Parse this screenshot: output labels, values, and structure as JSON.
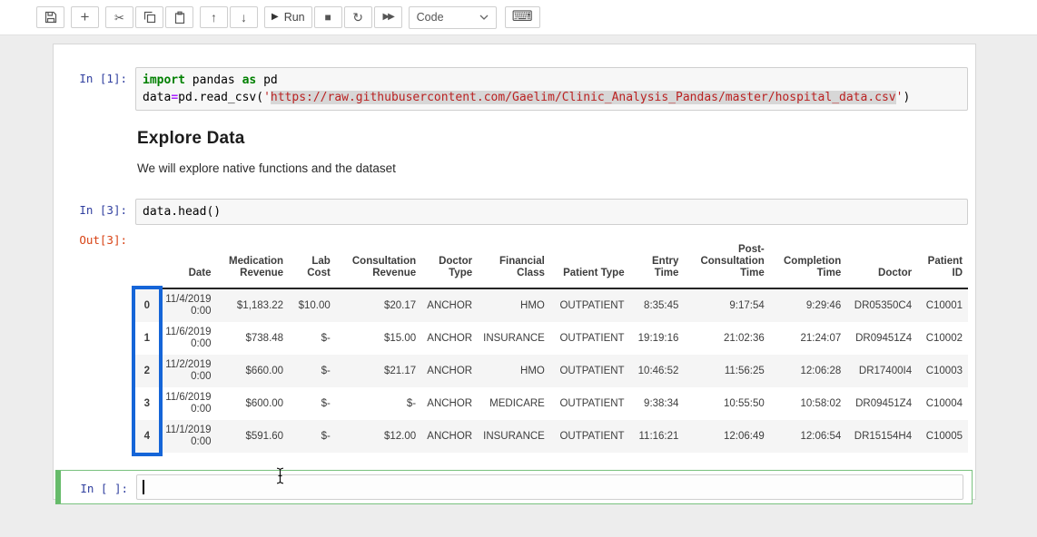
{
  "toolbar": {
    "mode": "Code",
    "run_label": "Run",
    "glyphs": {
      "plus": "+",
      "cut": "✂",
      "up": "↑",
      "down": "↓",
      "play": "▶",
      "stop": "■",
      "refresh": "↻",
      "ffwd": "▶▶",
      "keyboard": "⌨"
    }
  },
  "cell1": {
    "prompt": "In [1]:",
    "line1": [
      {
        "c": "kw",
        "t": "import"
      },
      {
        "c": "plain",
        "t": " pandas "
      },
      {
        "c": "kw",
        "t": "as"
      },
      {
        "c": "plain",
        "t": " pd"
      }
    ],
    "line2": [
      {
        "c": "plain",
        "t": "data"
      },
      {
        "c": "op",
        "t": "="
      },
      {
        "c": "plain",
        "t": "pd.read_csv("
      },
      {
        "c": "str",
        "t": "'"
      },
      {
        "c": "str sel",
        "t": "https://raw.githubusercontent.com/Gaelim/Clinic_Analysis_Pandas/master/hospital_data.csv"
      },
      {
        "c": "str",
        "t": "'"
      },
      {
        "c": "plain",
        "t": ")"
      }
    ]
  },
  "markdown": {
    "heading": "Explore Data",
    "paragraph": "We will explore native functions and the dataset"
  },
  "cell2": {
    "prompt": "In [3]:",
    "code": "data.head()",
    "out_prompt": "Out[3]:"
  },
  "table": {
    "columns": [
      "Date",
      "Medication Revenue",
      "Lab Cost",
      "Consultation Revenue",
      "Doctor Type",
      "Financial Class",
      "Patient Type",
      "Entry Time",
      "Post-Consultation Time",
      "Completion Time",
      "Doctor",
      "Patient ID"
    ],
    "rows": [
      {
        "index": "0",
        "cells": [
          "11/4/2019 0:00",
          "$1,183.22",
          "$10.00",
          "$20.17",
          "ANCHOR",
          "HMO",
          "OUTPATIENT",
          "8:35:45",
          "9:17:54",
          "9:29:46",
          "DR05350C4",
          "C10001"
        ]
      },
      {
        "index": "1",
        "cells": [
          "11/6/2019 0:00",
          "$738.48",
          "$-",
          "$15.00",
          "ANCHOR",
          "INSURANCE",
          "OUTPATIENT",
          "19:19:16",
          "21:02:36",
          "21:24:07",
          "DR09451Z4",
          "C10002"
        ]
      },
      {
        "index": "2",
        "cells": [
          "11/2/2019 0:00",
          "$660.00",
          "$-",
          "$21.17",
          "ANCHOR",
          "HMO",
          "OUTPATIENT",
          "10:46:52",
          "11:56:25",
          "12:06:28",
          "DR17400I4",
          "C10003"
        ]
      },
      {
        "index": "3",
        "cells": [
          "11/6/2019 0:00",
          "$600.00",
          "$-",
          "$-",
          "ANCHOR",
          "MEDICARE",
          "OUTPATIENT",
          "9:38:34",
          "10:55:50",
          "10:58:02",
          "DR09451Z4",
          "C10004"
        ]
      },
      {
        "index": "4",
        "cells": [
          "11/1/2019 0:00",
          "$591.60",
          "$-",
          "$12.00",
          "ANCHOR",
          "INSURANCE",
          "OUTPATIENT",
          "11:16:21",
          "12:06:49",
          "12:06:54",
          "DR15154H4",
          "C10005"
        ]
      }
    ]
  },
  "empty_cell": {
    "prompt": "In [ ]:"
  },
  "colors": {
    "prompt_in": "#303F9F",
    "prompt_out": "#D84315",
    "keyword_green": "#008000",
    "string_red": "#BA2121",
    "annotation_blue": "#1565d8",
    "edit_mode_green": "#66BB6A"
  }
}
